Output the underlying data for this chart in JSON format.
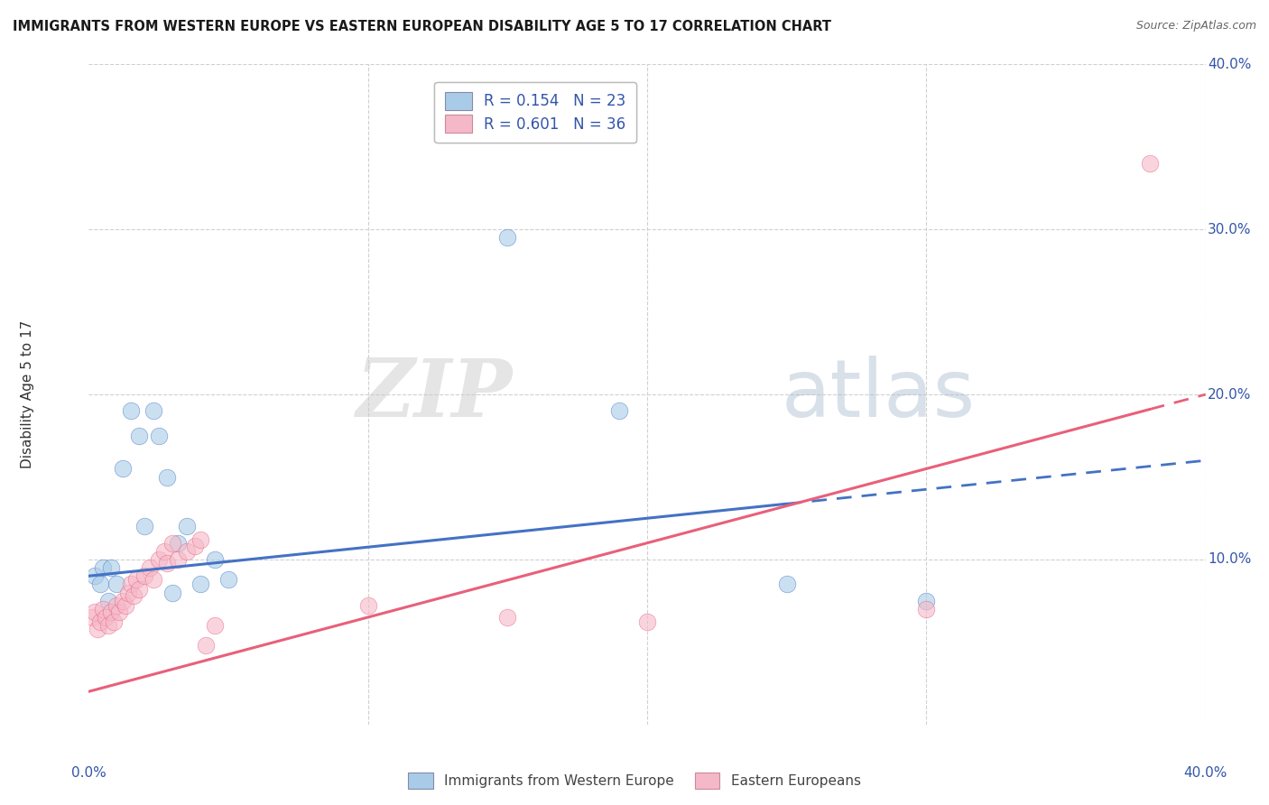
{
  "title": "IMMIGRANTS FROM WESTERN EUROPE VS EASTERN EUROPEAN DISABILITY AGE 5 TO 17 CORRELATION CHART",
  "source": "Source: ZipAtlas.com",
  "ylabel": "Disability Age 5 to 17",
  "xlim": [
    0.0,
    0.4
  ],
  "ylim": [
    0.0,
    0.4
  ],
  "yticks": [
    0.1,
    0.2,
    0.3,
    0.4
  ],
  "ytick_labels_right": [
    "10.0%",
    "20.0%",
    "30.0%",
    "40.0%"
  ],
  "xtick_labels_bottom": [
    "0.0%",
    "40.0%"
  ],
  "xtick_positions_bottom": [
    0.0,
    0.4
  ],
  "series1_name": "Immigrants from Western Europe",
  "series1_color": "#a8cce8",
  "series1_R": 0.154,
  "series1_N": 23,
  "series1_x": [
    0.002,
    0.004,
    0.005,
    0.007,
    0.008,
    0.01,
    0.012,
    0.015,
    0.018,
    0.02,
    0.023,
    0.025,
    0.028,
    0.03,
    0.032,
    0.035,
    0.04,
    0.045,
    0.05,
    0.15,
    0.19,
    0.25,
    0.3
  ],
  "series1_y": [
    0.09,
    0.085,
    0.095,
    0.075,
    0.095,
    0.085,
    0.155,
    0.19,
    0.175,
    0.12,
    0.19,
    0.175,
    0.15,
    0.08,
    0.11,
    0.12,
    0.085,
    0.1,
    0.088,
    0.295,
    0.19,
    0.085,
    0.075
  ],
  "series2_name": "Eastern Europeans",
  "series2_color": "#f5b8c8",
  "series2_R": 0.601,
  "series2_N": 36,
  "series2_x": [
    0.001,
    0.002,
    0.003,
    0.004,
    0.005,
    0.006,
    0.007,
    0.008,
    0.009,
    0.01,
    0.011,
    0.012,
    0.013,
    0.014,
    0.015,
    0.016,
    0.017,
    0.018,
    0.02,
    0.022,
    0.023,
    0.025,
    0.027,
    0.028,
    0.03,
    0.032,
    0.035,
    0.038,
    0.04,
    0.042,
    0.045,
    0.1,
    0.15,
    0.2,
    0.3,
    0.38
  ],
  "series2_y": [
    0.065,
    0.068,
    0.058,
    0.062,
    0.07,
    0.065,
    0.06,
    0.068,
    0.062,
    0.072,
    0.068,
    0.075,
    0.072,
    0.08,
    0.085,
    0.078,
    0.088,
    0.082,
    0.09,
    0.095,
    0.088,
    0.1,
    0.105,
    0.098,
    0.11,
    0.1,
    0.105,
    0.108,
    0.112,
    0.048,
    0.06,
    0.072,
    0.065,
    0.062,
    0.07,
    0.34
  ],
  "line1_start_y": 0.09,
  "line1_end_y": 0.16,
  "line2_start_y": 0.02,
  "line2_end_y": 0.2,
  "line1_solid_end_x": 0.25,
  "line2_solid_end_x": 0.38,
  "watermark_zip": "ZIP",
  "watermark_atlas": "atlas",
  "legend_color": "#3355aa",
  "line1_color": "#4472c4",
  "line2_color": "#e8607a",
  "background_color": "#ffffff",
  "grid_color": "#d0d0d0"
}
